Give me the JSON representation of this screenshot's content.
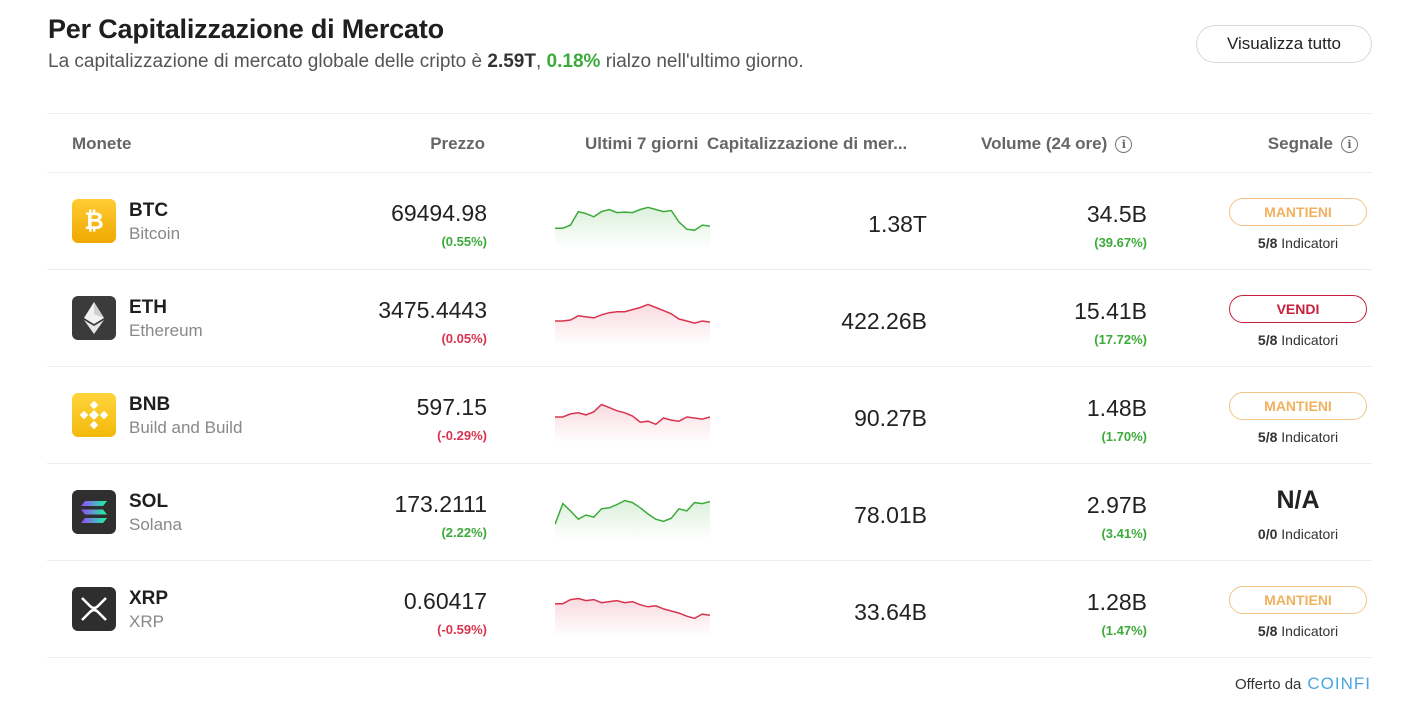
{
  "header": {
    "title": "Per Capitalizzazione di Mercato",
    "subtitle_pre": "La capitalizzazione di mercato globale delle cripto è",
    "market_cap": "2.59T",
    "sep": ",",
    "change": "0.18%",
    "subtitle_post": "rialzo nell'ultimo giorno."
  },
  "view_all_label": "Visualizza tutto",
  "columns": {
    "coins": "Monete",
    "price": "Prezzo",
    "last7": "Ultimi 7 giorni",
    "mcap": "Capitalizzazione di mer...",
    "volume": "Volume (24 ore)",
    "signal": "Segnale",
    "info_glyph": "i"
  },
  "colors": {
    "green": "#3cab3a",
    "red": "#d9344f",
    "hold": "#f0b15f",
    "sell": "#c7203c",
    "brand": "#4aa6e0"
  },
  "rows": [
    {
      "symbol": "BTC",
      "name": "Bitcoin",
      "logo_icon": "bitcoin-icon",
      "logo_glyph": "₿",
      "price": "69494.98",
      "price_change": "(0.55%)",
      "trend": "up",
      "spark": [
        40,
        40,
        46,
        72,
        68,
        62,
        72,
        76,
        70,
        71,
        70,
        76,
        80,
        76,
        72,
        74,
        52,
        38,
        36,
        46,
        44
      ],
      "market_cap": "1.38T",
      "volume": "34.5B",
      "volume_change": "(39.67%)",
      "signal": "MANTIENI",
      "signal_kind": "hold",
      "ind_count": "5/8",
      "ind_label": "Indicatori"
    },
    {
      "symbol": "ETH",
      "name": "Ethereum",
      "logo_icon": "ethereum-icon",
      "logo_glyph": "",
      "price": "3475.4443",
      "price_change": "(0.05%)",
      "trend": "down",
      "spark": [
        48,
        48,
        50,
        58,
        56,
        54,
        60,
        64,
        66,
        66,
        70,
        74,
        80,
        74,
        68,
        62,
        52,
        48,
        44,
        48,
        46
      ],
      "market_cap": "422.26B",
      "volume": "15.41B",
      "volume_change": "(17.72%)",
      "signal": "VENDI",
      "signal_kind": "sell",
      "ind_count": "5/8",
      "ind_label": "Indicatori"
    },
    {
      "symbol": "BNB",
      "name": "Build and Build",
      "logo_icon": "binance-icon",
      "logo_glyph": "",
      "price": "597.15",
      "price_change": "(-0.29%)",
      "trend": "down",
      "spark": [
        50,
        50,
        56,
        58,
        54,
        60,
        74,
        68,
        62,
        58,
        52,
        40,
        42,
        36,
        48,
        44,
        42,
        50,
        48,
        46,
        50
      ],
      "market_cap": "90.27B",
      "volume": "1.48B",
      "volume_change": "(1.70%)",
      "signal": "MANTIENI",
      "signal_kind": "hold",
      "ind_count": "5/8",
      "ind_label": "Indicatori"
    },
    {
      "symbol": "SOL",
      "name": "Solana",
      "logo_icon": "solana-icon",
      "logo_glyph": "",
      "price": "173.2111",
      "price_change": "(2.22%)",
      "trend": "up",
      "spark": [
        30,
        70,
        56,
        40,
        48,
        44,
        60,
        62,
        68,
        76,
        72,
        62,
        50,
        40,
        36,
        42,
        60,
        56,
        72,
        70,
        74
      ],
      "market_cap": "78.01B",
      "volume": "2.97B",
      "volume_change": "(3.41%)",
      "signal": "N/A",
      "signal_kind": "na",
      "ind_count": "0/0",
      "ind_label": "Indicatori"
    },
    {
      "symbol": "XRP",
      "name": "XRP",
      "logo_icon": "xrp-icon",
      "logo_glyph": "",
      "price": "0.60417",
      "price_change": "(-0.59%)",
      "trend": "down",
      "spark": [
        64,
        64,
        72,
        74,
        70,
        72,
        66,
        68,
        70,
        66,
        68,
        62,
        58,
        60,
        54,
        50,
        46,
        40,
        36,
        44,
        42
      ],
      "market_cap": "33.64B",
      "volume": "1.28B",
      "volume_change": "(1.47%)",
      "signal": "MANTIENI",
      "signal_kind": "hold",
      "ind_count": "5/8",
      "ind_label": "Indicatori"
    }
  ],
  "footer": {
    "offered_by": "Offerto da",
    "brand": "COINFI"
  }
}
